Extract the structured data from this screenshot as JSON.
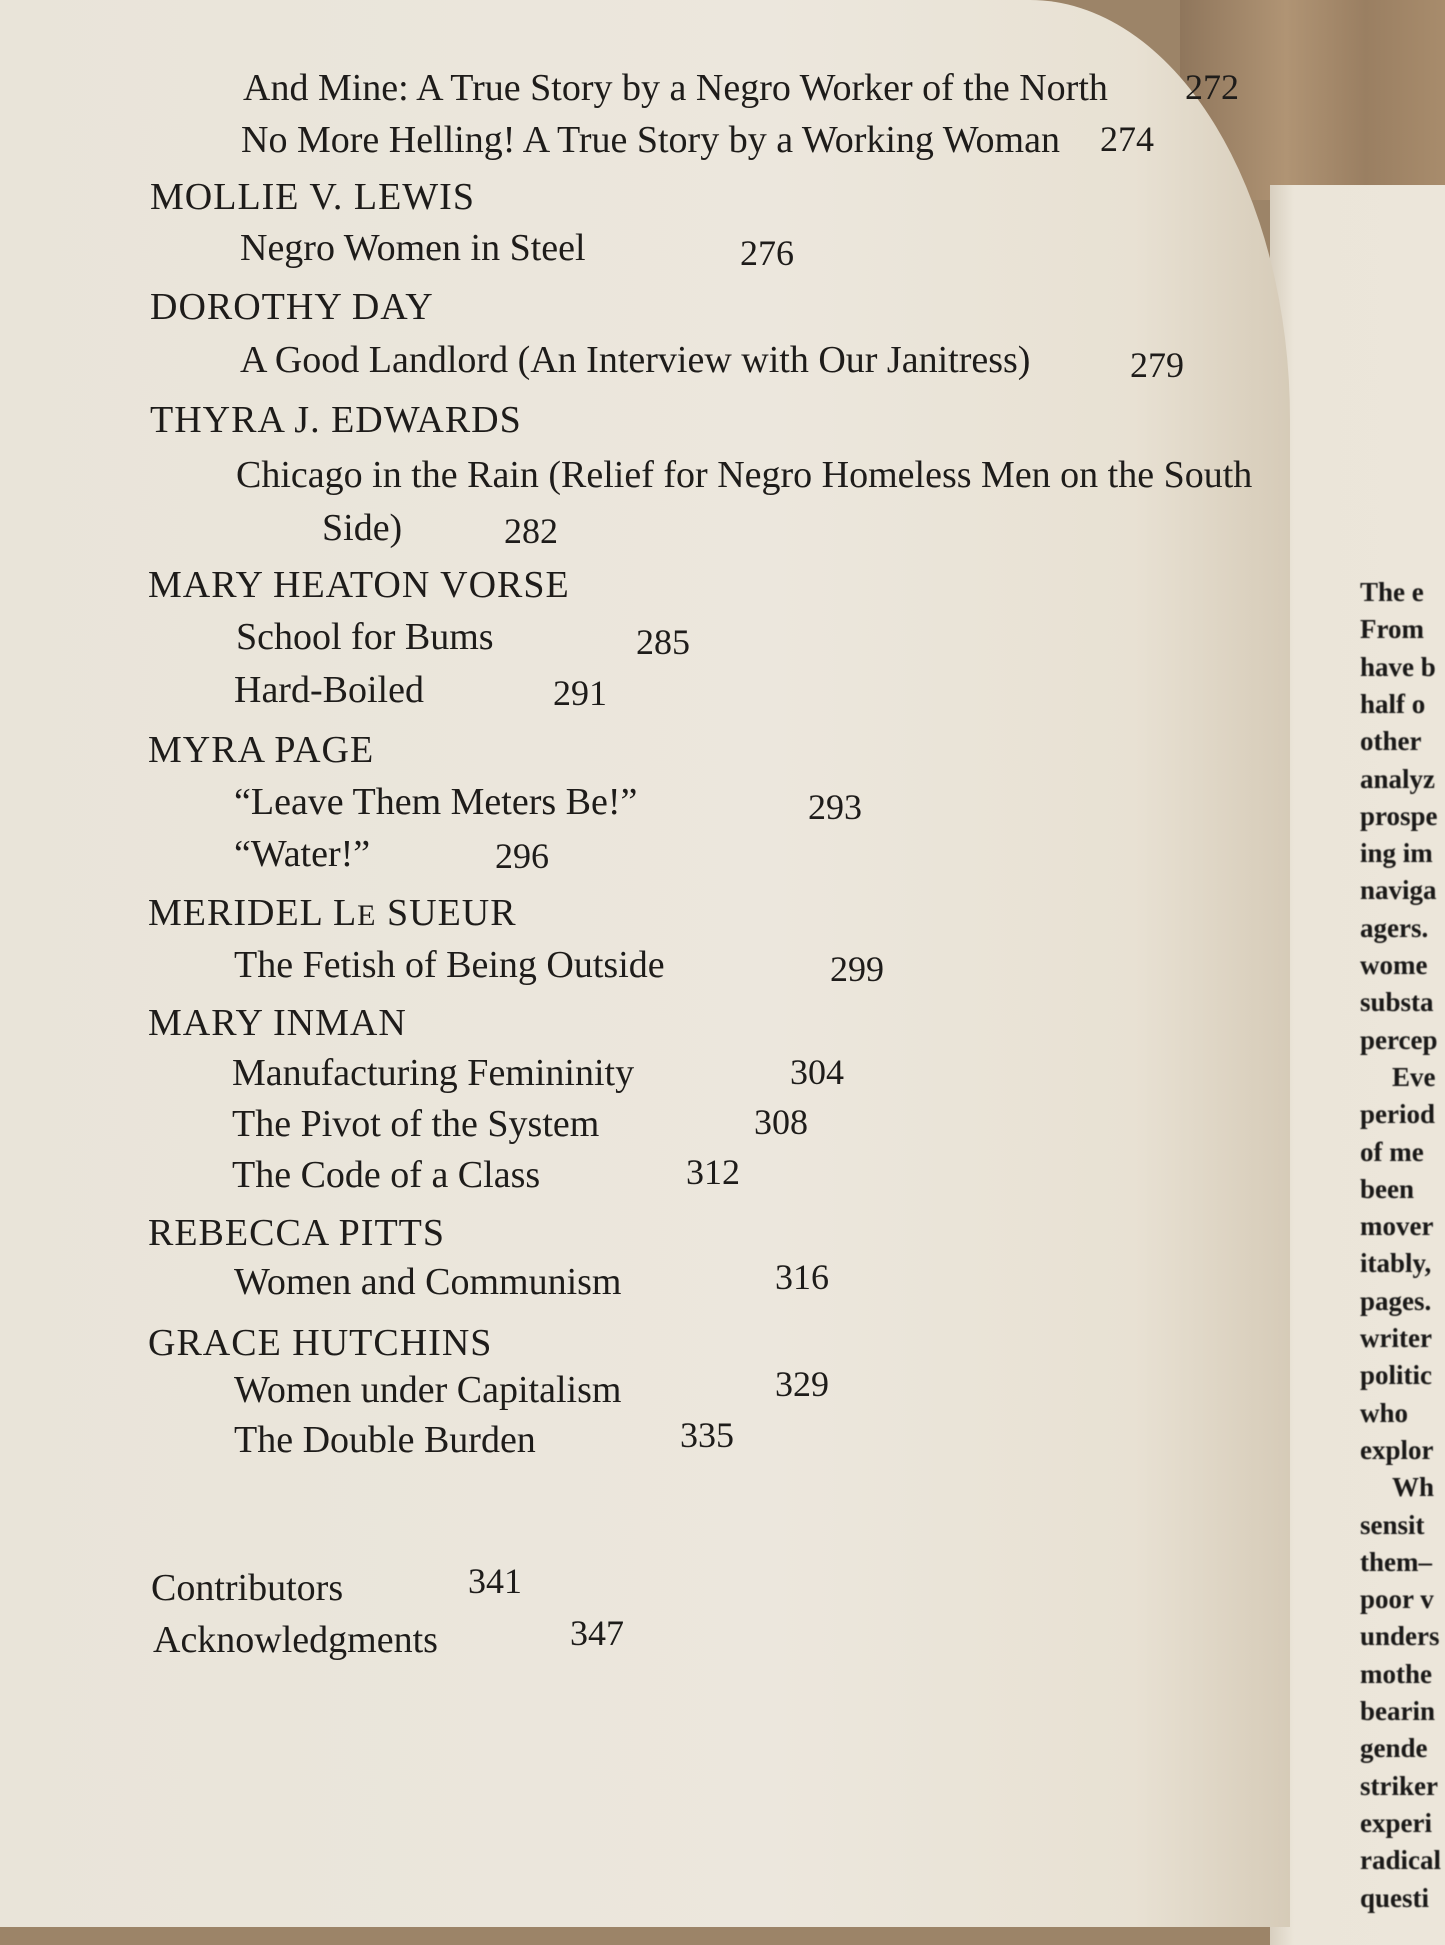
{
  "toc": {
    "entries": [
      {
        "kind": "title",
        "text": "And Mine: A True Story by a Negro Worker of the North",
        "page": "272"
      },
      {
        "kind": "title",
        "text": "No More Helling! A True Story by a Working Woman",
        "page": "274"
      },
      {
        "kind": "author",
        "text": "MOLLIE V. LEWIS"
      },
      {
        "kind": "title",
        "text": "Negro Women in Steel",
        "page": "276"
      },
      {
        "kind": "author",
        "text": "DOROTHY DAY"
      },
      {
        "kind": "title",
        "text": "A Good Landlord (An Interview with Our Janitress)",
        "page": "279"
      },
      {
        "kind": "author",
        "text": "THYRA J. EDWARDS"
      },
      {
        "kind": "title",
        "text": "Chicago in the Rain (Relief for Negro Homeless Men on the South"
      },
      {
        "kind": "title",
        "text": "Side)",
        "page": "282"
      },
      {
        "kind": "author",
        "text": "MARY HEATON VORSE"
      },
      {
        "kind": "title",
        "text": "School for Bums",
        "page": "285"
      },
      {
        "kind": "title",
        "text": "Hard-Boiled",
        "page": "291"
      },
      {
        "kind": "author",
        "text": "MYRA PAGE"
      },
      {
        "kind": "title",
        "text": "“Leave Them Meters Be!”",
        "page": "293"
      },
      {
        "kind": "title",
        "text": "“Water!”",
        "page": "296"
      },
      {
        "kind": "author",
        "text": "MERIDEL LE SUEUR"
      },
      {
        "kind": "title",
        "text": "The Fetish of Being Outside",
        "page": "299"
      },
      {
        "kind": "author",
        "text": "MARY INMAN"
      },
      {
        "kind": "title",
        "text": "Manufacturing Femininity",
        "page": "304"
      },
      {
        "kind": "title",
        "text": "The Pivot of the System",
        "page": "308"
      },
      {
        "kind": "title",
        "text": "The Code of a Class",
        "page": "312"
      },
      {
        "kind": "author",
        "text": "REBECCA PITTS"
      },
      {
        "kind": "title",
        "text": "Women and Communism",
        "page": "316"
      },
      {
        "kind": "author",
        "text": "GRACE HUTCHINS"
      },
      {
        "kind": "title",
        "text": "Women under Capitalism",
        "page": "329"
      },
      {
        "kind": "title",
        "text": "The Double Burden",
        "page": "335"
      },
      {
        "kind": "back",
        "text": "Contributors",
        "page": "341"
      },
      {
        "kind": "back",
        "text": "Acknowledgments",
        "page": "347"
      }
    ]
  },
  "right_page": {
    "lines": [
      "The e",
      "From",
      "have b",
      "half o",
      "other",
      "analyz",
      "prospe",
      "ing im",
      "naviga",
      "agers.",
      "wome",
      "substa",
      "percep",
      "Eve",
      "period",
      "of me",
      "been",
      "mover",
      "itably,",
      "pages.",
      "writer",
      "politic",
      "who",
      "explor",
      "Wh",
      "sensit",
      "them–",
      "poor v",
      "unders",
      "mothe",
      "bearin",
      "gende",
      "striker",
      "experi",
      "radical",
      "questi"
    ]
  },
  "colors": {
    "paper": "#ece7dd",
    "ink": "#1e1c1a",
    "wood": "#9c8468"
  }
}
